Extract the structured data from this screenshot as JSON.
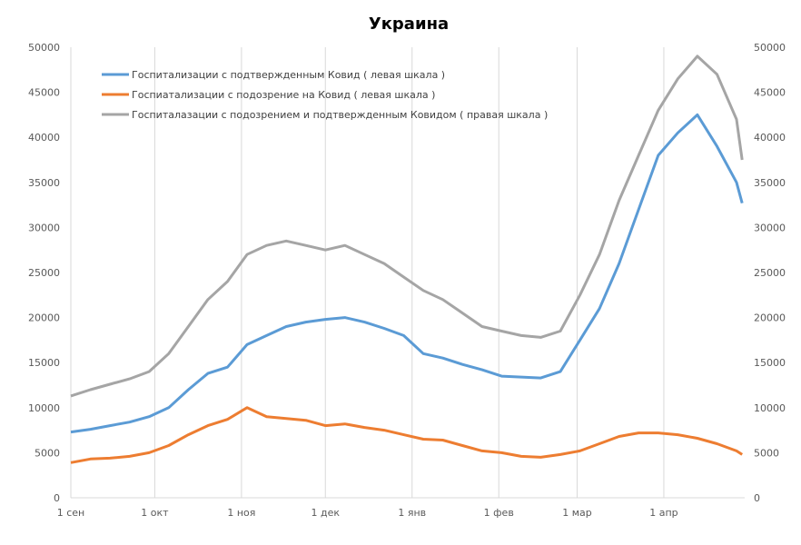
{
  "chart_data": {
    "type": "line",
    "title": "Украина",
    "x_tick_labels": [
      "1 сен",
      "1 окт",
      "1 ноя",
      "1 дек",
      "1 янв",
      "1 фев",
      "1 мар",
      "1 апр"
    ],
    "y_left": {
      "range": [
        0,
        50000
      ],
      "ticks": [
        "0",
        "5000",
        "10000",
        "15000",
        "20000",
        "25000",
        "30000",
        "35000",
        "40000",
        "45000",
        "50000"
      ]
    },
    "y_right": {
      "range": [
        0,
        50000
      ],
      "ticks": [
        "0",
        "5000",
        "10000",
        "15000",
        "20000",
        "25000",
        "30000",
        "35000",
        "40000",
        "45000",
        "50000"
      ]
    },
    "grid": "vertical lines at month ticks",
    "legend_position": "top-left",
    "x": [
      "1 сен",
      "8 сен",
      "15 сен",
      "22 сен",
      "29 сен",
      "6 окт",
      "13 окт",
      "20 окт",
      "27 окт",
      "3 ноя",
      "10 ноя",
      "17 ноя",
      "24 ноя",
      "1 дек",
      "8 дек",
      "15 дек",
      "22 дек",
      "29 дек",
      "5 янв",
      "12 янв",
      "19 янв",
      "26 янв",
      "2 фев",
      "9 фев",
      "16 фев",
      "23 фев",
      "2 мар",
      "9 мар",
      "16 мар",
      "23 мар",
      "30 мар",
      "6 апр",
      "13 апр",
      "20 апр",
      "27 апр",
      "29 апр"
    ],
    "series": [
      {
        "name": "Госпитализации с подтвержденным Ковид ( левая шкала )",
        "axis": "left",
        "color": "#5b9bd5",
        "values": [
          7300,
          7600,
          8000,
          8400,
          9000,
          10000,
          12000,
          13800,
          14500,
          17000,
          18000,
          19000,
          19500,
          19800,
          20000,
          19500,
          18800,
          18000,
          16000,
          15500,
          14800,
          14200,
          13500,
          13400,
          13300,
          14000,
          17500,
          21000,
          26000,
          32000,
          38000,
          40500,
          42500,
          39000,
          35000,
          32700
        ]
      },
      {
        "name": "Госпиатализации с подозрение на Ковид ( левая шкала )",
        "axis": "left",
        "color": "#ed7d31",
        "values": [
          3900,
          4300,
          4400,
          4600,
          5000,
          5800,
          7000,
          8000,
          8700,
          10000,
          9000,
          8800,
          8600,
          8000,
          8200,
          7800,
          7500,
          7000,
          6500,
          6400,
          5800,
          5200,
          5000,
          4600,
          4500,
          4800,
          5200,
          6000,
          6800,
          7200,
          7200,
          7000,
          6600,
          6000,
          5200,
          4800
        ]
      },
      {
        "name": "Госпиталазации с подозрением и подтвержденным Ковидом ( правая шкала )",
        "axis": "right",
        "color": "#a5a5a5",
        "values": [
          11300,
          12000,
          12600,
          13200,
          14000,
          16000,
          19000,
          22000,
          24000,
          27000,
          28000,
          28500,
          28000,
          27500,
          28000,
          27000,
          26000,
          24500,
          23000,
          22000,
          20500,
          19000,
          18500,
          18000,
          17800,
          18500,
          22500,
          27000,
          33000,
          38000,
          43000,
          46500,
          49000,
          47000,
          42000,
          37500
        ]
      }
    ]
  }
}
